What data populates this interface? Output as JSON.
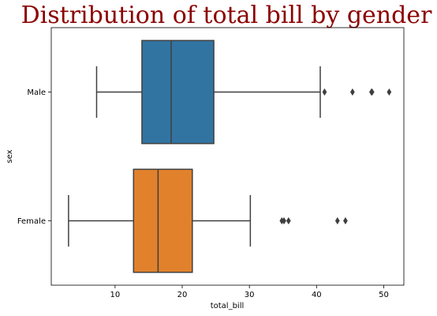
{
  "chart_data": {
    "type": "boxplot",
    "orientation": "horizontal",
    "title": "Distribution of total bill by gender",
    "xlabel": "total_bill",
    "ylabel": "sex",
    "xlim": [
      0.5,
      53.0
    ],
    "xticks": [
      10,
      20,
      30,
      40,
      50
    ],
    "xtick_labels": [
      "10",
      "20",
      "30",
      "40",
      "50"
    ],
    "categories": [
      "Male",
      "Female"
    ],
    "grid": false,
    "legend": "none",
    "colors": {
      "title": "#8b0000",
      "box_edge": "#3f3f3f"
    },
    "boxes": [
      {
        "category": "Male",
        "color": "#3274a1",
        "whisker_low": 7.25,
        "q1": 14.0,
        "median": 18.35,
        "q3": 24.7,
        "whisker_high": 40.55,
        "outliers": [
          41.19,
          45.35,
          48.17,
          48.27,
          50.81
        ]
      },
      {
        "category": "Female",
        "color": "#e1812c",
        "whisker_low": 3.07,
        "q1": 12.75,
        "median": 16.4,
        "q3": 21.5,
        "whisker_high": 30.14,
        "outliers": [
          34.83,
          35.15,
          35.83,
          43.11,
          44.3
        ]
      }
    ]
  }
}
